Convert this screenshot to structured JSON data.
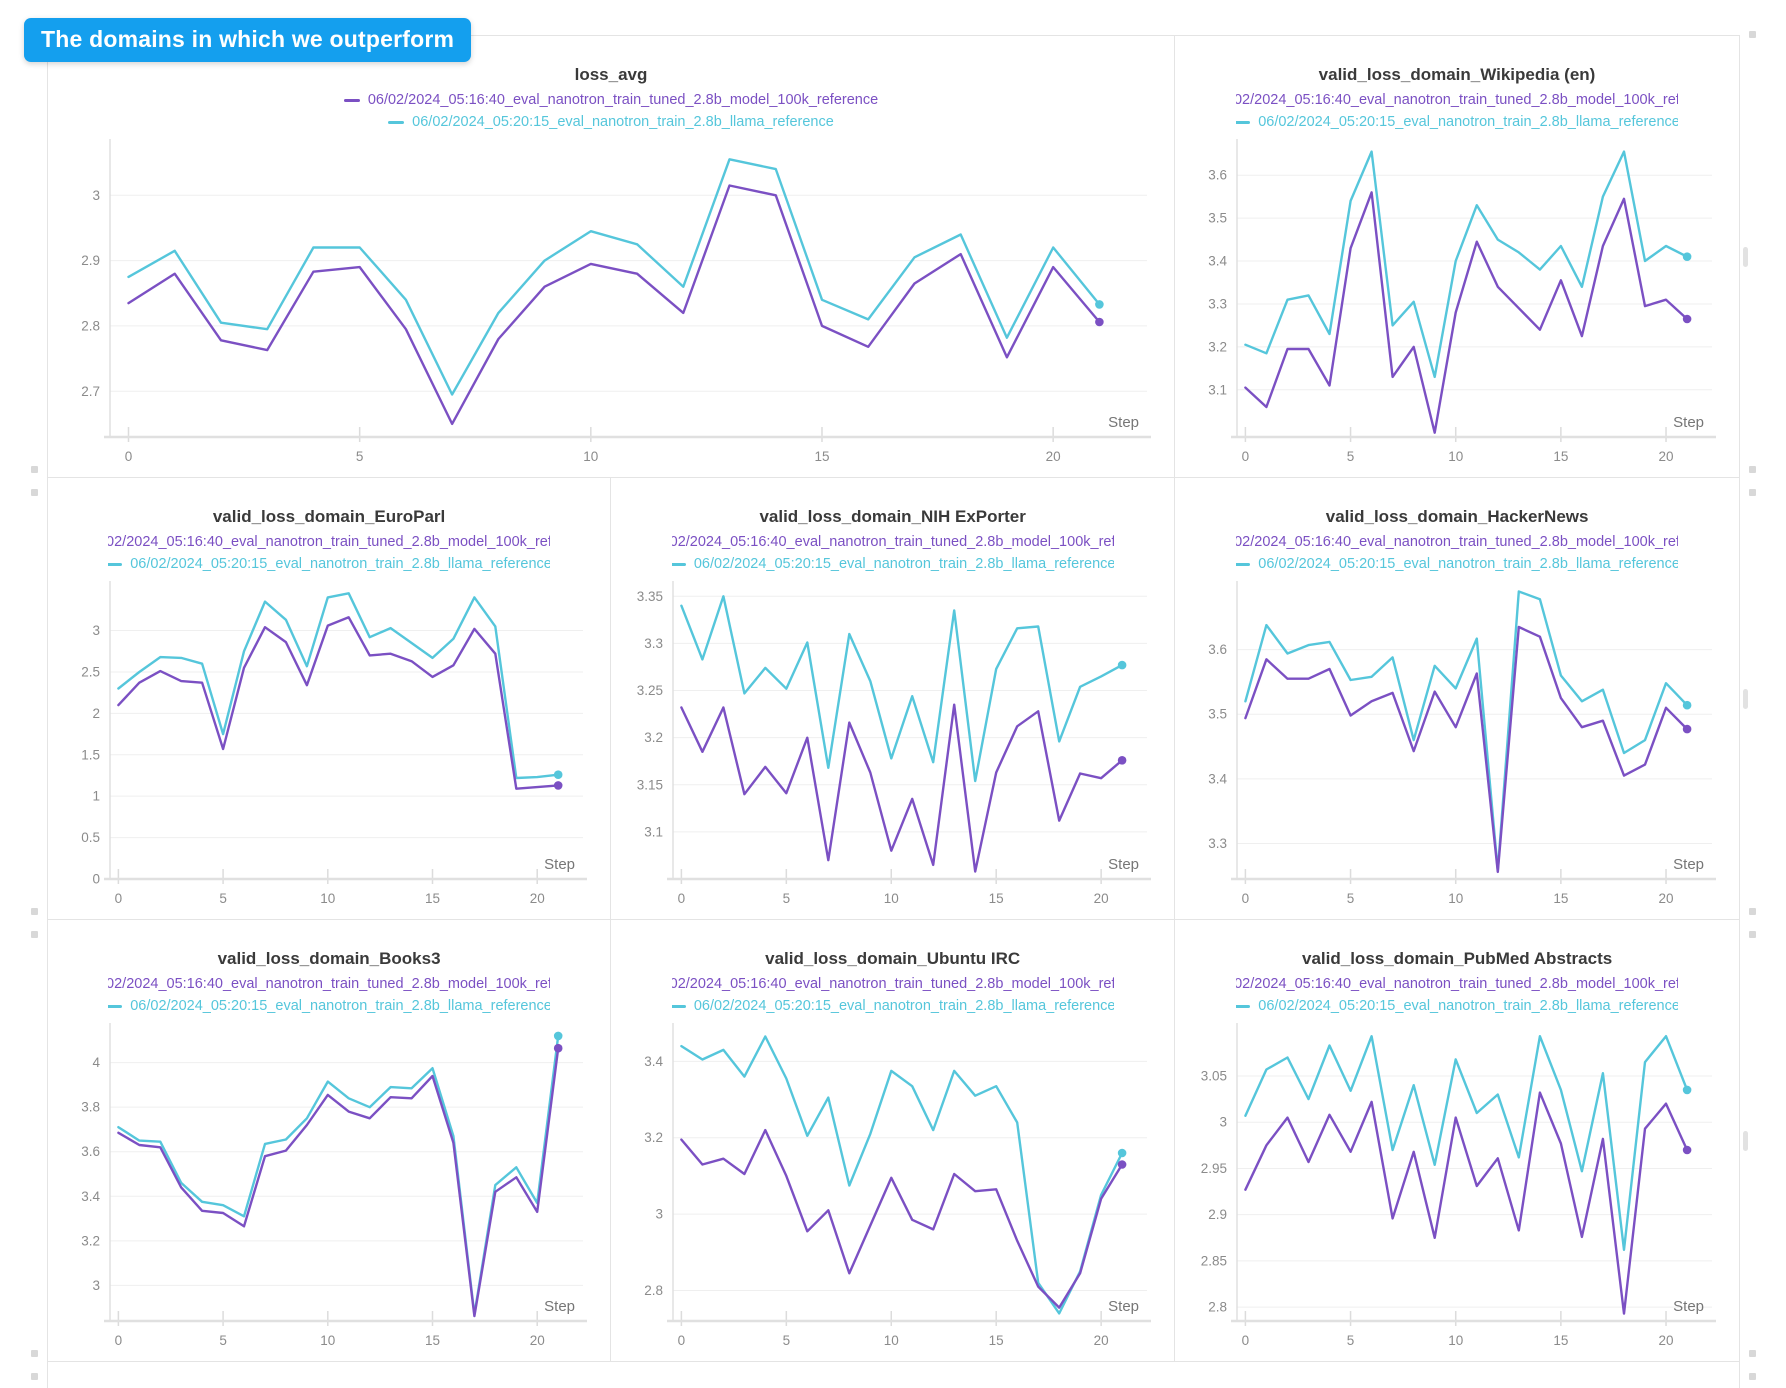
{
  "banner": {
    "label": "The domains in which we outperform"
  },
  "colors": {
    "banner_bg": "#149fee",
    "run_tuned_purple": "#7b50c3",
    "run_llama_cyan": "#55c6db",
    "panel_border": "#e4e4e4",
    "grid_line": "#efefef",
    "axis_line": "#e0e0e0",
    "tick_text": "#8b8b8b",
    "title_text": "#3a3a3a"
  },
  "runs": [
    {
      "name": "06/02/2024_05:16:40_eval_nanotron_train_tuned_2.8b_model_100k_reference",
      "color": "#7b50c3"
    },
    {
      "name": "06/02/2024_05:20:15_eval_nanotron_train_2.8b_llama_reference",
      "color": "#55c6db"
    }
  ],
  "chart_data": [
    {
      "type": "line",
      "title": "loss_avg",
      "x_label": "Step",
      "legend_position": "top",
      "x": [
        0,
        1,
        2,
        3,
        4,
        5,
        6,
        7,
        8,
        9,
        10,
        11,
        12,
        13,
        14,
        15,
        16,
        17,
        18,
        19,
        20,
        21
      ],
      "xticks": [
        0,
        5,
        10,
        15,
        20
      ],
      "yticks": [
        2.7,
        2.8,
        2.9,
        3
      ],
      "xlim": [
        -0.4,
        21.9
      ],
      "ylim": [
        2.63,
        3.08
      ],
      "series": [
        {
          "name": "06/02/2024_05:16:40_eval_nanotron_train_tuned_2.8b_model_100k_reference",
          "color": "#7b50c3",
          "values": [
            2.835,
            2.88,
            2.778,
            2.763,
            2.883,
            2.89,
            2.795,
            2.65,
            2.78,
            2.86,
            2.895,
            2.88,
            2.82,
            3.015,
            3.0,
            2.8,
            2.768,
            2.865,
            2.91,
            2.752,
            2.89,
            2.806
          ]
        },
        {
          "name": "06/02/2024_05:20:15_eval_nanotron_train_2.8b_llama_reference",
          "color": "#55c6db",
          "values": [
            2.875,
            2.915,
            2.805,
            2.795,
            2.92,
            2.92,
            2.84,
            2.695,
            2.82,
            2.9,
            2.945,
            2.925,
            2.86,
            3.055,
            3.04,
            2.84,
            2.81,
            2.905,
            2.94,
            2.782,
            2.92,
            2.833
          ]
        }
      ]
    },
    {
      "type": "line",
      "title": "valid_loss_domain_Wikipedia (en)",
      "x_label": "Step",
      "legend_position": "top",
      "x": [
        0,
        1,
        2,
        3,
        4,
        5,
        6,
        7,
        8,
        9,
        10,
        11,
        12,
        13,
        14,
        15,
        16,
        17,
        18,
        19,
        20,
        21
      ],
      "xticks": [
        0,
        5,
        10,
        15,
        20
      ],
      "yticks": [
        3.1,
        3.2,
        3.3,
        3.4,
        3.5,
        3.6
      ],
      "xlim": [
        -0.4,
        21.9
      ],
      "ylim": [
        2.99,
        3.675
      ],
      "series": [
        {
          "name": "06/02/2024_05:16:40_eval_nanotron_train_tuned_2.8b_model_100k_reference",
          "color": "#7b50c3",
          "values": [
            3.105,
            3.06,
            3.195,
            3.195,
            3.11,
            3.43,
            3.56,
            3.13,
            3.2,
            3.0,
            3.28,
            3.445,
            3.34,
            3.29,
            3.24,
            3.355,
            3.225,
            3.435,
            3.545,
            3.295,
            3.31,
            3.265
          ]
        },
        {
          "name": "06/02/2024_05:20:15_eval_nanotron_train_2.8b_llama_reference",
          "color": "#55c6db",
          "values": [
            3.205,
            3.185,
            3.31,
            3.32,
            3.23,
            3.54,
            3.655,
            3.25,
            3.305,
            3.13,
            3.4,
            3.53,
            3.45,
            3.42,
            3.38,
            3.435,
            3.34,
            3.55,
            3.655,
            3.4,
            3.435,
            3.41
          ]
        }
      ]
    },
    {
      "type": "line",
      "title": "valid_loss_domain_EuroParl",
      "x_label": "Step",
      "legend_position": "top",
      "x": [
        0,
        1,
        2,
        3,
        4,
        5,
        6,
        7,
        8,
        9,
        10,
        11,
        12,
        13,
        14,
        15,
        16,
        17,
        18,
        19,
        20,
        21
      ],
      "xticks": [
        0,
        5,
        10,
        15,
        20
      ],
      "yticks": [
        0,
        0.5,
        1,
        1.5,
        2,
        2.5,
        3
      ],
      "xlim": [
        -0.4,
        21.9
      ],
      "ylim": [
        0,
        3.55
      ],
      "series": [
        {
          "name": "06/02/2024_05:16:40_eval_nanotron_train_tuned_2.8b_model_100k_reference",
          "color": "#7b50c3",
          "values": [
            2.1,
            2.37,
            2.51,
            2.39,
            2.37,
            1.57,
            2.55,
            3.04,
            2.86,
            2.34,
            3.06,
            3.16,
            2.7,
            2.72,
            2.63,
            2.44,
            2.58,
            3.02,
            2.72,
            1.09,
            1.11,
            1.13
          ]
        },
        {
          "name": "06/02/2024_05:20:15_eval_nanotron_train_2.8b_llama_reference",
          "color": "#55c6db",
          "values": [
            2.3,
            2.5,
            2.68,
            2.67,
            2.6,
            1.75,
            2.75,
            3.35,
            3.13,
            2.57,
            3.4,
            3.45,
            2.92,
            3.03,
            2.85,
            2.67,
            2.9,
            3.4,
            3.05,
            1.22,
            1.23,
            1.26
          ]
        }
      ]
    },
    {
      "type": "line",
      "title": "valid_loss_domain_NIH ExPorter",
      "x_label": "Step",
      "legend_position": "top",
      "x": [
        0,
        1,
        2,
        3,
        4,
        5,
        6,
        7,
        8,
        9,
        10,
        11,
        12,
        13,
        14,
        15,
        16,
        17,
        18,
        19,
        20,
        21
      ],
      "xticks": [
        0,
        5,
        10,
        15,
        20
      ],
      "yticks": [
        3.1,
        3.15,
        3.2,
        3.25,
        3.3,
        3.35
      ],
      "xlim": [
        -0.4,
        21.9
      ],
      "ylim": [
        3.05,
        3.362
      ],
      "series": [
        {
          "name": "06/02/2024_05:16:40_eval_nanotron_train_tuned_2.8b_model_100k_reference",
          "color": "#7b50c3",
          "values": [
            3.232,
            3.185,
            3.232,
            3.14,
            3.169,
            3.141,
            3.2,
            3.07,
            3.216,
            3.163,
            3.08,
            3.135,
            3.065,
            3.235,
            3.058,
            3.163,
            3.212,
            3.228,
            3.112,
            3.162,
            3.157,
            3.176
          ]
        },
        {
          "name": "06/02/2024_05:20:15_eval_nanotron_train_2.8b_llama_reference",
          "color": "#55c6db",
          "values": [
            3.34,
            3.283,
            3.35,
            3.247,
            3.274,
            3.252,
            3.301,
            3.168,
            3.31,
            3.26,
            3.178,
            3.244,
            3.174,
            3.335,
            3.154,
            3.273,
            3.316,
            3.318,
            3.196,
            3.254,
            3.265,
            3.277
          ]
        }
      ]
    },
    {
      "type": "line",
      "title": "valid_loss_domain_HackerNews",
      "x_label": "Step",
      "legend_position": "top",
      "x": [
        0,
        1,
        2,
        3,
        4,
        5,
        6,
        7,
        8,
        9,
        10,
        11,
        12,
        13,
        14,
        15,
        16,
        17,
        18,
        19,
        20,
        21
      ],
      "xticks": [
        0,
        5,
        10,
        15,
        20
      ],
      "yticks": [
        3.3,
        3.4,
        3.5,
        3.6
      ],
      "xlim": [
        -0.4,
        21.9
      ],
      "ylim": [
        3.245,
        3.7
      ],
      "series": [
        {
          "name": "06/02/2024_05:16:40_eval_nanotron_train_tuned_2.8b_model_100k_reference",
          "color": "#7b50c3",
          "values": [
            3.494,
            3.585,
            3.555,
            3.555,
            3.57,
            3.498,
            3.52,
            3.533,
            3.443,
            3.535,
            3.48,
            3.563,
            3.256,
            3.635,
            3.62,
            3.525,
            3.48,
            3.49,
            3.405,
            3.422,
            3.51,
            3.477
          ]
        },
        {
          "name": "06/02/2024_05:20:15_eval_nanotron_train_2.8b_llama_reference",
          "color": "#55c6db",
          "values": [
            3.52,
            3.638,
            3.594,
            3.607,
            3.612,
            3.553,
            3.558,
            3.588,
            3.46,
            3.575,
            3.54,
            3.617,
            3.258,
            3.69,
            3.678,
            3.56,
            3.52,
            3.538,
            3.44,
            3.46,
            3.548,
            3.514
          ]
        }
      ]
    },
    {
      "type": "line",
      "title": "valid_loss_domain_Books3",
      "x_label": "Step",
      "legend_position": "top",
      "x": [
        0,
        1,
        2,
        3,
        4,
        5,
        6,
        7,
        8,
        9,
        10,
        11,
        12,
        13,
        14,
        15,
        16,
        17,
        18,
        19,
        20,
        21
      ],
      "xticks": [
        0,
        5,
        10,
        15,
        20
      ],
      "yticks": [
        3,
        3.2,
        3.4,
        3.6,
        3.8,
        4
      ],
      "xlim": [
        -0.4,
        21.9
      ],
      "ylim": [
        2.84,
        4.16
      ],
      "series": [
        {
          "name": "06/02/2024_05:16:40_eval_nanotron_train_tuned_2.8b_model_100k_reference",
          "color": "#7b50c3",
          "values": [
            3.685,
            3.63,
            3.62,
            3.44,
            3.335,
            3.325,
            3.265,
            3.58,
            3.605,
            3.72,
            3.855,
            3.78,
            3.75,
            3.845,
            3.84,
            3.94,
            3.64,
            2.862,
            3.42,
            3.485,
            3.33,
            4.065
          ]
        },
        {
          "name": "06/02/2024_05:20:15_eval_nanotron_train_2.8b_llama_reference",
          "color": "#55c6db",
          "values": [
            3.71,
            3.65,
            3.645,
            3.46,
            3.375,
            3.36,
            3.31,
            3.635,
            3.655,
            3.75,
            3.915,
            3.84,
            3.8,
            3.89,
            3.885,
            3.975,
            3.67,
            2.87,
            3.45,
            3.53,
            3.37,
            4.12
          ]
        }
      ]
    },
    {
      "type": "line",
      "title": "valid_loss_domain_Ubuntu IRC",
      "x_label": "Step",
      "legend_position": "top",
      "x": [
        0,
        1,
        2,
        3,
        4,
        5,
        6,
        7,
        8,
        9,
        10,
        11,
        12,
        13,
        14,
        15,
        16,
        17,
        18,
        19,
        20,
        21
      ],
      "xticks": [
        0,
        5,
        10,
        15,
        20
      ],
      "yticks": [
        2.8,
        3,
        3.2,
        3.4
      ],
      "xlim": [
        -0.4,
        21.9
      ],
      "ylim": [
        2.72,
        3.49
      ],
      "series": [
        {
          "name": "06/02/2024_05:16:40_eval_nanotron_train_tuned_2.8b_model_100k_reference",
          "color": "#7b50c3",
          "values": [
            3.195,
            3.13,
            3.145,
            3.105,
            3.22,
            3.1,
            2.955,
            3.01,
            2.845,
            2.97,
            3.095,
            2.985,
            2.96,
            3.105,
            3.06,
            3.065,
            2.93,
            2.81,
            2.755,
            2.845,
            3.04,
            3.13
          ]
        },
        {
          "name": "06/02/2024_05:20:15_eval_nanotron_train_2.8b_llama_reference",
          "color": "#55c6db",
          "values": [
            3.44,
            3.405,
            3.43,
            3.36,
            3.465,
            3.355,
            3.205,
            3.305,
            3.075,
            3.21,
            3.375,
            3.335,
            3.22,
            3.375,
            3.31,
            3.335,
            3.24,
            2.82,
            2.74,
            2.85,
            3.05,
            3.16
          ]
        }
      ]
    },
    {
      "type": "line",
      "title": "valid_loss_domain_PubMed Abstracts",
      "x_label": "Step",
      "legend_position": "top",
      "x": [
        0,
        1,
        2,
        3,
        4,
        5,
        6,
        7,
        8,
        9,
        10,
        11,
        12,
        13,
        14,
        15,
        16,
        17,
        18,
        19,
        20,
        21
      ],
      "xticks": [
        0,
        5,
        10,
        15,
        20
      ],
      "yticks": [
        2.8,
        2.85,
        2.9,
        2.95,
        3,
        3.05
      ],
      "xlim": [
        -0.4,
        21.9
      ],
      "ylim": [
        2.785,
        3.103
      ],
      "series": [
        {
          "name": "06/02/2024_05:16:40_eval_nanotron_train_tuned_2.8b_model_100k_reference",
          "color": "#7b50c3",
          "values": [
            2.927,
            2.975,
            3.005,
            2.957,
            3.008,
            2.968,
            3.022,
            2.896,
            2.968,
            2.875,
            3.005,
            2.931,
            2.961,
            2.883,
            3.032,
            2.977,
            2.876,
            2.982,
            2.793,
            2.993,
            3.02,
            2.97
          ]
        },
        {
          "name": "06/02/2024_05:20:15_eval_nanotron_train_2.8b_llama_reference",
          "color": "#55c6db",
          "values": [
            3.007,
            3.057,
            3.07,
            3.025,
            3.083,
            3.034,
            3.093,
            2.97,
            3.04,
            2.954,
            3.068,
            3.01,
            3.03,
            2.962,
            3.093,
            3.035,
            2.947,
            3.053,
            2.862,
            3.065,
            3.093,
            3.035
          ]
        }
      ]
    }
  ]
}
